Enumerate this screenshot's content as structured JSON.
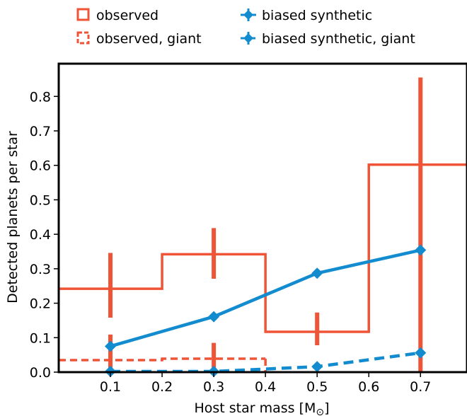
{
  "colors": {
    "observed": "#f05436",
    "synthetic": "#128bcf",
    "axis": "#000000"
  },
  "chart_data": {
    "type": "line",
    "xlabel": "Host star mass [M",
    "xlabel_sub": "⊙",
    "xlabel_close": "]",
    "ylabel": "Detected planets per star",
    "xlim": [
      0.0,
      0.79
    ],
    "ylim": [
      0.0,
      0.895
    ],
    "xticks": [
      0.1,
      0.2,
      0.3,
      0.4,
      0.5,
      0.6,
      0.7
    ],
    "xtick_labels": [
      "0.1",
      "0.2",
      "0.3",
      "0.4",
      "0.5",
      "0.6",
      "0.7"
    ],
    "yticks": [
      0.0,
      0.1,
      0.2,
      0.3,
      0.4,
      0.5,
      0.6,
      0.7,
      0.8
    ],
    "ytick_labels": [
      "0.0",
      "0.1",
      "0.2",
      "0.3",
      "0.4",
      "0.5",
      "0.6",
      "0.7",
      "0.8"
    ],
    "legend_position": "top (above plot), two columns",
    "grid": false,
    "series": [
      {
        "name": "observed",
        "kind": "step",
        "style": "solid",
        "color": "#f05436",
        "bins": [
          {
            "x0": 0.0,
            "x1": 0.2,
            "y": 0.242
          },
          {
            "x0": 0.2,
            "x1": 0.4,
            "y": 0.342
          },
          {
            "x0": 0.4,
            "x1": 0.6,
            "y": 0.117
          },
          {
            "x0": 0.6,
            "x1": 0.79,
            "y": 0.602
          }
        ],
        "errorbars": [
          {
            "x": 0.1,
            "low": 0.158,
            "high": 0.346
          },
          {
            "x": 0.3,
            "low": 0.271,
            "high": 0.418
          },
          {
            "x": 0.5,
            "low": 0.078,
            "high": 0.173
          },
          {
            "x": 0.7,
            "low": 0.0,
            "high": 0.855
          }
        ]
      },
      {
        "name": "observed, giant",
        "kind": "step",
        "style": "dashed",
        "color": "#f05436",
        "bins": [
          {
            "x0": 0.0,
            "x1": 0.2,
            "y": 0.035
          },
          {
            "x0": 0.2,
            "x1": 0.4,
            "y": 0.039
          }
        ],
        "errorbars": [
          {
            "x": 0.1,
            "low": 0.0,
            "high": 0.109
          },
          {
            "x": 0.3,
            "low": 0.0,
            "high": 0.085
          }
        ]
      },
      {
        "name": "biased synthetic",
        "kind": "line",
        "style": "solid",
        "color": "#128bcf",
        "x": [
          0.1,
          0.3,
          0.5,
          0.7
        ],
        "y": [
          0.075,
          0.161,
          0.287,
          0.354
        ]
      },
      {
        "name": "biased synthetic, giant",
        "kind": "line",
        "style": "dashed",
        "color": "#128bcf",
        "x": [
          0.1,
          0.3,
          0.5,
          0.7
        ],
        "y": [
          0.002,
          0.002,
          0.016,
          0.056
        ]
      }
    ]
  }
}
